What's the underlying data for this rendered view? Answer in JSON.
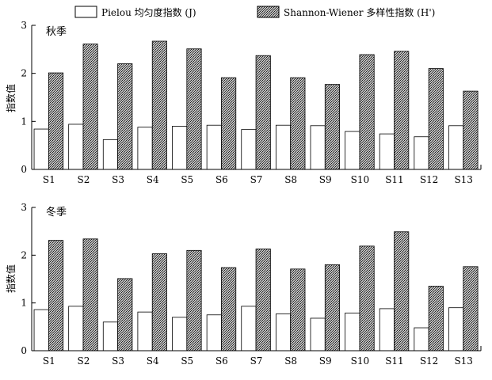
{
  "legend": {
    "pielou_label": "Pielou 均匀度指数 (J)",
    "shannon_label": "Shannon-Wiener 多样性指数 (H')"
  },
  "chart_data": [
    {
      "type": "bar",
      "panel_label": "秋季",
      "ylabel": "指数值",
      "ylim": [
        0,
        3
      ],
      "yticks": [
        "0",
        "1",
        "2",
        "3"
      ],
      "categories": [
        "S1",
        "S2",
        "S3",
        "S4",
        "S5",
        "S6",
        "S7",
        "S8",
        "S9",
        "S10",
        "S11",
        "S12",
        "S13"
      ],
      "series": [
        {
          "name": "Pielou 均匀度指数 (J)",
          "values": [
            0.84,
            0.94,
            0.62,
            0.88,
            0.9,
            0.92,
            0.83,
            0.92,
            0.91,
            0.79,
            0.74,
            0.68,
            0.91
          ]
        },
        {
          "name": "Shannon-Wiener 多样性指数 (H')",
          "values": [
            2.01,
            2.61,
            2.2,
            2.67,
            2.51,
            1.91,
            2.37,
            1.91,
            1.77,
            2.39,
            2.46,
            2.1,
            1.63
          ]
        }
      ]
    },
    {
      "type": "bar",
      "panel_label": "冬季",
      "ylabel": "指数值",
      "ylim": [
        0,
        3
      ],
      "yticks": [
        "0",
        "1",
        "2",
        "3"
      ],
      "categories": [
        "S1",
        "S2",
        "S3",
        "S4",
        "S5",
        "S6",
        "S7",
        "S8",
        "S9",
        "S10",
        "S11",
        "S12",
        "S13"
      ],
      "series": [
        {
          "name": "Pielou 均匀度指数 (J)",
          "values": [
            0.86,
            0.93,
            0.6,
            0.81,
            0.7,
            0.75,
            0.93,
            0.77,
            0.68,
            0.79,
            0.88,
            0.48,
            0.9
          ]
        },
        {
          "name": "Shannon-Wiener 多样性指数 (H')",
          "values": [
            2.31,
            2.34,
            1.51,
            2.03,
            2.1,
            1.74,
            2.13,
            1.71,
            1.8,
            2.19,
            2.49,
            1.35,
            1.76
          ]
        }
      ]
    }
  ]
}
